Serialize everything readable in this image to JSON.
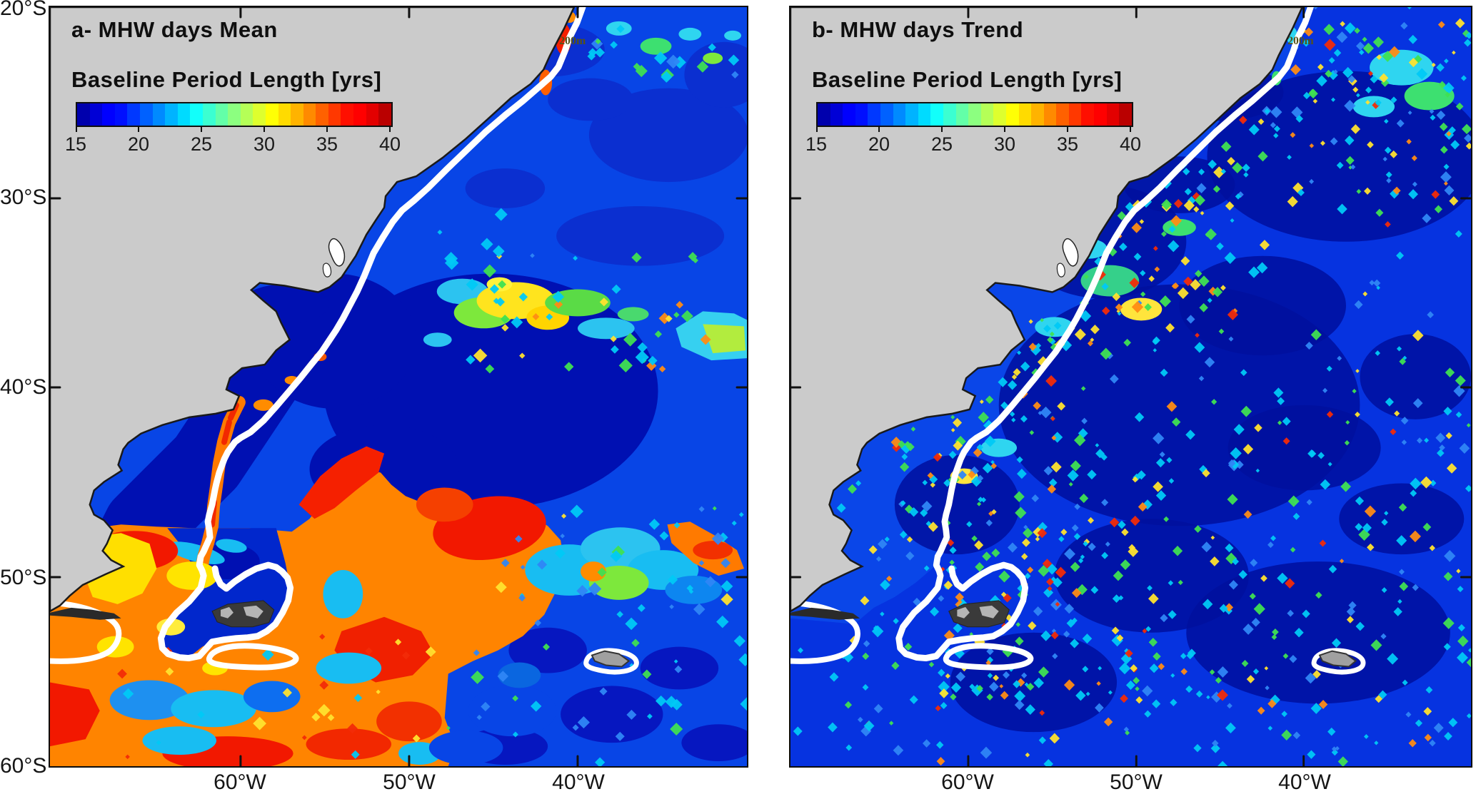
{
  "figure": {
    "background": "#ffffff",
    "land_color": "#cbcbcb",
    "coast_color": "#1a1a1a",
    "isobath_contour_color": "#ffffff"
  },
  "axes": {
    "lat_ticks": [
      "20°S",
      "30°S",
      "40°S",
      "50°S",
      "60°S"
    ],
    "lon_ticks": [
      "60°W",
      "50°W",
      "40°W"
    ]
  },
  "panels": [
    {
      "id": "a",
      "title": "a- MHW days Mean",
      "colorbar_label": "Baseline Period Length [yrs]",
      "colorbar_ticks": [
        "15",
        "20",
        "25",
        "30",
        "35",
        "40"
      ],
      "isobath_label": "200m"
    },
    {
      "id": "b",
      "title": "b- MHW days Trend",
      "colorbar_label": "Baseline Period Length [yrs]",
      "colorbar_ticks": [
        "15",
        "20",
        "25",
        "30",
        "35",
        "40"
      ],
      "isobath_label": "200m"
    }
  ],
  "chart_data": [
    {
      "type": "heatmap",
      "panel": "a",
      "title": "a- MHW days Mean",
      "variable": "Baseline Period Length",
      "units": "yrs",
      "colormap": "jet",
      "range": [
        15,
        40
      ],
      "colorbar_ticks": [
        15,
        20,
        25,
        30,
        35,
        40
      ],
      "x_axis": {
        "ticks": [
          "60°W",
          "50°W",
          "40°W"
        ]
      },
      "y_axis": {
        "ticks": [
          "20°S",
          "30°S",
          "40°S",
          "50°S",
          "60°S"
        ]
      },
      "map_extent": {
        "lon_range": [
          "~71°W",
          "~30°W"
        ],
        "lat_range": [
          "20°S",
          "60°S"
        ]
      },
      "annotations": [
        "200m isobath drawn as thick white contour",
        "gray = land (South America, Malvinas/Falklands, South Georgia)"
      ],
      "regions": [
        {
          "name": "open ocean NE of shelf break (20-45°S)",
          "approx_value_yrs": 17
        },
        {
          "name": "continental shelf and Argentine basin (35-48°S)",
          "approx_value_yrs": 15.5
        },
        {
          "name": "Brazil-Malvinas confluence patch (~37°S, 45°W)",
          "approx_value_yrs": 28
        },
        {
          "name": "eastern edge green-cyan patch (~38°S)",
          "approx_value_yrs": 25
        },
        {
          "name": "southern band south of ~50°S (orange-red)",
          "approx_value_yrs": 36
        },
        {
          "name": "red cores within southern band",
          "approx_value_yrs": 39
        },
        {
          "name": "coastal spot near 22°S (Cabo Frio)",
          "approx_value_yrs": 38
        }
      ]
    },
    {
      "type": "heatmap",
      "panel": "b",
      "title": "b- MHW days Trend",
      "variable": "Baseline Period Length",
      "units": "yrs",
      "colormap": "jet",
      "range": [
        15,
        40
      ],
      "colorbar_ticks": [
        15,
        20,
        25,
        30,
        35,
        40
      ],
      "x_axis": {
        "ticks": [
          "60°W",
          "50°W",
          "40°W"
        ]
      },
      "y_axis": {
        "ticks": [
          "20°S",
          "30°S",
          "40°S",
          "50°S",
          "60°S"
        ]
      },
      "map_extent": {
        "lon_range": [
          "~71°W",
          "~30°W"
        ],
        "lat_range": [
          "20°S",
          "60°S"
        ]
      },
      "annotations": [
        "200m isobath drawn as thick white contour",
        "gray = land"
      ],
      "regions": [
        {
          "name": "most of the domain (dark blue field)",
          "approx_value_yrs": 16
        },
        {
          "name": "scattered speckled cells along shelf break",
          "approx_value_yrs": "20-35"
        },
        {
          "name": "speckled zone south of 50°S",
          "approx_value_yrs": "18-30"
        },
        {
          "name": "north-eastern corner speckled zone",
          "approx_value_yrs": "18-28"
        },
        {
          "name": "isolated red cells",
          "approx_value_yrs": 38
        }
      ]
    }
  ]
}
